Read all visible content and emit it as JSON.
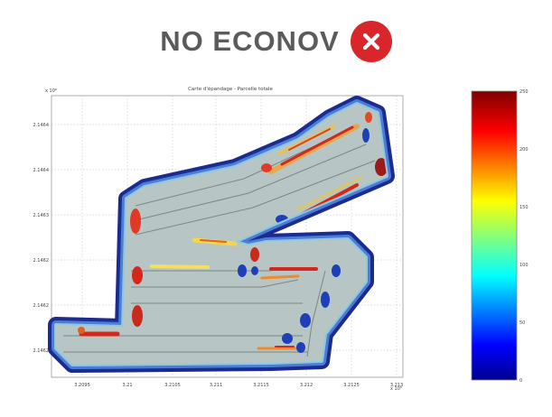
{
  "header": {
    "title": "NO ECONOV",
    "badge_icon": "close-icon",
    "badge_color": "#d9262b"
  },
  "chart_data": {
    "type": "heatmap",
    "title": "Carte d'épandage - Parcelle totale",
    "y_exponent": "x 10⁶",
    "x_exponent": "x 10⁵",
    "x_ticks": [
      "3.2095",
      "3.21",
      "3.2105",
      "3.211",
      "3.2115",
      "3.212",
      "3.2125",
      "3.213"
    ],
    "y_ticks": [
      "2.1464",
      "2.1464",
      "2.1463",
      "2.1462",
      "2.1462",
      "2.1462"
    ],
    "grid": true,
    "colorbar": {
      "ticks": [
        "0",
        "50",
        "100",
        "150",
        "200",
        "250"
      ],
      "range": [
        0,
        250
      ],
      "colormap": "jet"
    }
  }
}
